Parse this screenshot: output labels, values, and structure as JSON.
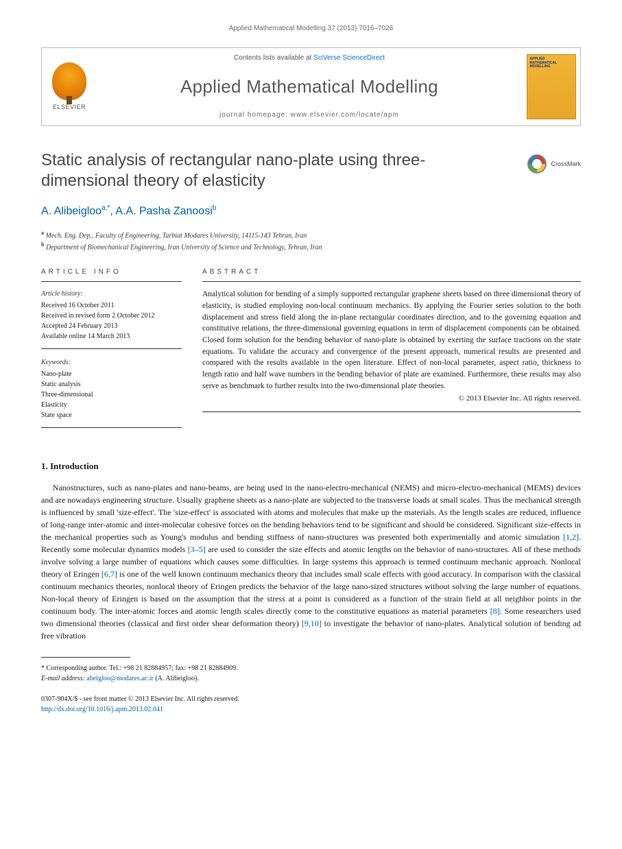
{
  "running_head": "Applied Mathematical Modelling 37 (2013) 7016–7026",
  "masthead": {
    "publisher_label": "ELSEVIER",
    "contents_prefix": "Contents lists available at ",
    "contents_link": "SciVerse ScienceDirect",
    "journal_name": "Applied Mathematical Modelling",
    "homepage": "journal homepage: www.elsevier.com/locate/apm",
    "cover_title": "APPLIED MATHEMATICAL MODELLING"
  },
  "title": "Static analysis of rectangular nano-plate using three-dimensional theory of elasticity",
  "crossmark_label": "CrossMark",
  "authors": {
    "a1_name": "A. Alibeigloo",
    "a1_sup": "a,",
    "a1_star": "*",
    "sep": ", ",
    "a2_name": "A.A. Pasha Zanoosi",
    "a2_sup": "b"
  },
  "affiliations": {
    "a": "Mech. Eng. Dep., Faculty of Engineering, Tarbiat Modares University, 14115-143 Tehran, Iran",
    "b": "Department of Biomechanical Engineering, Iran University of Science and Technology, Tehran, Iran"
  },
  "article_info": {
    "head": "ARTICLE INFO",
    "history_head": "Article history:",
    "received": "Received 16 October 2011",
    "revised": "Received in revised form 2 October 2012",
    "accepted": "Accepted 24 February 2013",
    "online": "Available online 14 March 2013",
    "keywords_head": "Keywords:",
    "k1": "Nano-plate",
    "k2": "Static analysis",
    "k3": "Three-dimensional",
    "k4": "Elasticity",
    "k5": "State space"
  },
  "abstract": {
    "head": "ABSTRACT",
    "body": "Analytical solution for bending of a simply supported rectangular graphene sheets based on three dimensional theory of elasticity, is studied employing non-local continuum mechanics. By applying the Fourier series solution to the both displacement and stress field along the in-plane rectangular coordinates direction, and to the governing equation and constitutive relations, the three-dimensional governing equations in term of displacement components can be obtained. Closed form solution for the bending behavior of nano-plate is obtained by exerting the surface tractions on the state equations. To validate the accuracy and convergence of the present approach, numerical results are presented and compared with the results available in the open literature. Effect of non-local parameter, aspect ratio, thickness to length ratio and half wave numbers in the bending behavior of plate are examined. Furthermore, these results may also serve as benchmark to further results into the two-dimensional plate theories.",
    "copyright": "© 2013 Elsevier Inc. All rights reserved."
  },
  "intro": {
    "head": "1. Introduction",
    "para": "Nanostructures, such as nano-plates and nano-beams, are being used in the nano-electro-mechanical (NEMS) and micro-electro-mechanical (MEMS) devices and are nowadays engineering structure. Usually graphene sheets as a nano-plate are subjected to the transverse loads at small scales. Thus the mechanical strength is influenced by small 'size-effect'. The 'size-effect' is associated with atoms and molecules that make up the materials. As the length scales are reduced, influence of long-range inter-atomic and inter-molecular cohesive forces on the bending behaviors tend to be significant and should be considered. Significant size-effects in the mechanical properties such as Young's modulus and bending stiffness of nano-structures was presented both experimentally and atomic simulation [1,2]. Recently some molecular dynamics models [3–5] are used to consider the size effects and atomic lengths on the behavior of nano-structures. All of these methods involve solving a large number of equations which causes some difficulties. In large systems this approach is termed continuum mechanic approach. Nonlocal theory of Eringen [6,7] is one of the well known continuum mechanics theory that includes small scale effects with good accuracy. In comparison with the classical continuum mechanics theories, nonlocal theory of Eringen predicts the behavior of the large nano-sized structures without solving the large number of equations. Non-local theory of Eringen is based on the assumption that the stress at a point is considered as a function of the strain field at all neighbor points in the continuum body. The inter-atomic forces and atomic length scales directly come to the constitutive equations as material parameters [8]. Some researchers used two dimensional theories (classical and first order shear deformation theory) [9,10] to investigate the behavior of nano-plates. Analytical solution of bending ad free vibration",
    "refs": {
      "r12": "[1,2]",
      "r35": "[3–5]",
      "r67": "[6,7]",
      "r8": "[8]",
      "r910": "[9,10]"
    }
  },
  "footer": {
    "corr_label": "* Corresponding author. Tel.: +98 21 82884957; fax: +98 21 82884909.",
    "email_label": "E-mail address: ",
    "email": "abeigloo@modares.ac.ir",
    "email_suffix": " (A. Alibeigloo).",
    "issn": "0307-904X/$ - see front matter © 2013 Elsevier Inc. All rights reserved.",
    "doi": "http://dx.doi.org/10.1016/j.apm.2013.02.041"
  },
  "colors": {
    "link": "#0060aa",
    "text": "#1a1a1a",
    "muted": "#5a5a5a",
    "rule": "#333333"
  }
}
